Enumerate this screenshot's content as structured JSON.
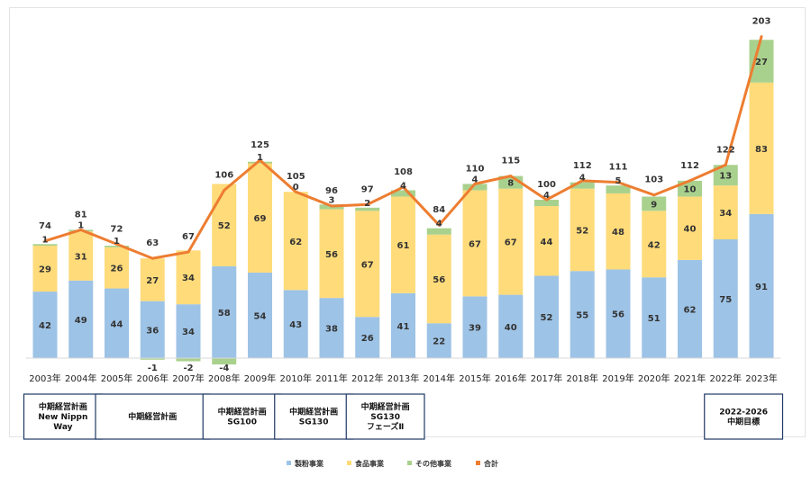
{
  "chart_data": {
    "type": "bar",
    "stacked": true,
    "categories": [
      "2003年",
      "2004年",
      "2005年",
      "2006年",
      "2007年",
      "2008年",
      "2009年",
      "2010年",
      "2011年",
      "2012年",
      "2013年",
      "2014年",
      "2015年",
      "2016年",
      "2017年",
      "2018年",
      "2019年",
      "2020年",
      "2021年",
      "2022年",
      "2023年"
    ],
    "series": [
      {
        "name": "製粉事業",
        "color": "#9dc3e6",
        "values": [
          42,
          49,
          44,
          36,
          34,
          58,
          54,
          43,
          38,
          26,
          41,
          22,
          39,
          40,
          52,
          55,
          56,
          51,
          62,
          75,
          91
        ]
      },
      {
        "name": "食品事業",
        "color": "#ffdb7a",
        "values": [
          29,
          31,
          26,
          27,
          34,
          52,
          69,
          62,
          56,
          67,
          61,
          56,
          67,
          67,
          44,
          52,
          48,
          42,
          40,
          34,
          83
        ]
      },
      {
        "name": "その他事業",
        "color": "#a9d18e",
        "values": [
          1,
          1,
          1,
          -1,
          -2,
          -4,
          1,
          0,
          3,
          2,
          4,
          4,
          4,
          8,
          4,
          4,
          5,
          9,
          10,
          13,
          27
        ]
      }
    ],
    "line": {
      "name": "合計",
      "color": "#ed7d31",
      "values": [
        74,
        81,
        72,
        63,
        67,
        106,
        125,
        105,
        96,
        97,
        108,
        84,
        110,
        115,
        100,
        112,
        111,
        103,
        112,
        122,
        203
      ]
    },
    "ylim": [
      -5,
      205
    ],
    "grid": false,
    "legend_position": "bottom",
    "legend": [
      {
        "name": "製粉事業",
        "color": "#9dc3e6",
        "marker": "square"
      },
      {
        "name": "食品事業",
        "color": "#ffdb7a",
        "marker": "square"
      },
      {
        "name": "その他事業",
        "color": "#a9d18e",
        "marker": "square"
      },
      {
        "name": "合計",
        "color": "#ed7d31",
        "marker": "square"
      }
    ],
    "plans": [
      {
        "lines": [
          "中期経営計画",
          "New Nippn",
          "Way"
        ],
        "first": 0,
        "last": 1
      },
      {
        "lines": [
          "中期経営計画"
        ],
        "first": 2,
        "last": 4
      },
      {
        "lines": [
          "中期経営計画",
          "SG100"
        ],
        "first": 5,
        "last": 6
      },
      {
        "lines": [
          "中期経営計画",
          "SG130"
        ],
        "first": 7,
        "last": 8
      },
      {
        "lines": [
          "中期経営計画",
          "SG130",
          "フェーズⅡ"
        ],
        "first": 9,
        "last": 10
      },
      {
        "lines": [
          "2022-2026",
          "中期目標"
        ],
        "first": 19,
        "last": 20
      }
    ]
  }
}
